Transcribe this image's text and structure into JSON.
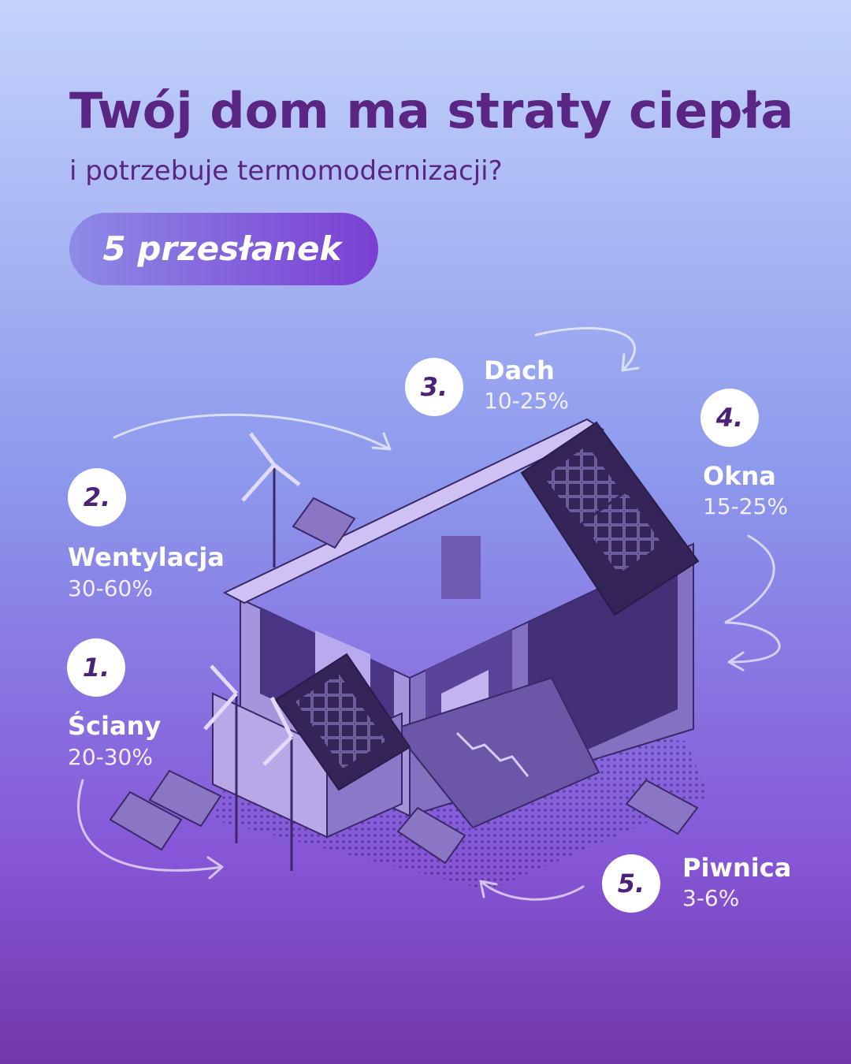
{
  "header": {
    "title": "Twój dom ma straty ciepła",
    "subtitle": "i potrzebuje termomodernizacji?",
    "badge": "5 przesłanek"
  },
  "items": [
    {
      "number": "1.",
      "name": "Ściany",
      "range": "20-30%"
    },
    {
      "number": "2.",
      "name": "Wentylacja",
      "range": "30-60%"
    },
    {
      "number": "3.",
      "name": "Dach",
      "range": "10-25%"
    },
    {
      "number": "4.",
      "name": "Okna",
      "range": "15-25%"
    },
    {
      "number": "5.",
      "name": "Piwnica",
      "range": "3-6%"
    }
  ]
}
